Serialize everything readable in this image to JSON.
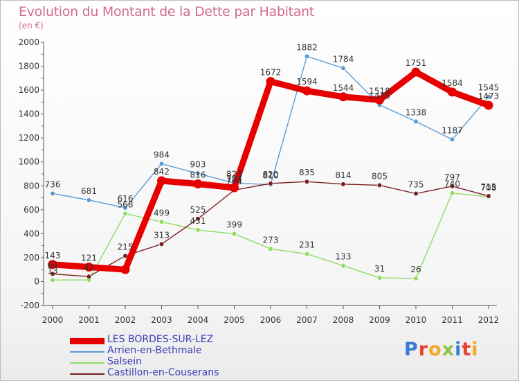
{
  "header": {
    "title": "Evolution du Montant de la Dette par Habitant",
    "subtitle": "(en €)"
  },
  "logo": {
    "text": "Proxiti",
    "colors": [
      "#3a7bd5",
      "#e8402f",
      "#f5a623",
      "#8bc34a",
      "#3a7bd5",
      "#e8402f",
      "#f5a623"
    ]
  },
  "chart_data": {
    "type": "line",
    "x": [
      "2000",
      "2001",
      "2002",
      "2003",
      "2004",
      "2005",
      "2006",
      "2007",
      "2008",
      "2009",
      "2010",
      "2011",
      "2012"
    ],
    "ylim": [
      -200,
      2000
    ],
    "yticks": [
      "-200",
      "0",
      "200",
      "400",
      "600",
      "800",
      "1000",
      "1200",
      "1400",
      "1600",
      "1800",
      "2000"
    ],
    "grid": false,
    "legend_position": "bottom-left",
    "series": [
      {
        "name": "LES BORDES-SUR-LEZ",
        "color": "#e60000",
        "values": [
          143,
          121,
          100,
          842,
          816,
          784,
          1672,
          1594,
          1544,
          1518,
          1751,
          1584,
          1473
        ],
        "labels": [
          "143",
          "121",
          "",
          "842",
          "816",
          "784",
          "1672",
          "1594",
          "1544",
          "1518",
          "1751",
          "1584",
          "1473"
        ]
      },
      {
        "name": "Arrien-en-Bethmale",
        "color": "#5b9bd5",
        "values": [
          736,
          681,
          616,
          984,
          903,
          823,
          810,
          1882,
          1784,
          1476,
          1338,
          1187,
          1545
        ],
        "labels": [
          "736",
          "681",
          "616",
          "984",
          "903",
          "823",
          "810",
          "1882",
          "1784",
          "1476",
          "1338",
          "1187",
          "1545"
        ]
      },
      {
        "name": "Salsein",
        "color": "#8fdc5f",
        "values": [
          13,
          14,
          568,
          499,
          431,
          399,
          273,
          231,
          133,
          31,
          26,
          740,
          708
        ],
        "labels": [
          "13",
          "",
          "568",
          "499",
          "431",
          "399",
          "273",
          "231",
          "133",
          "31",
          "26",
          "740",
          "708"
        ]
      },
      {
        "name": "Castillon-en-Couserans",
        "color": "#7a1e1e",
        "values": [
          64,
          42,
          215,
          313,
          525,
          764,
          820,
          835,
          814,
          805,
          735,
          797,
          715
        ],
        "labels": [
          "64",
          "42",
          "215",
          "313",
          "525",
          "764",
          "820",
          "835",
          "814",
          "805",
          "735",
          "797",
          "715"
        ]
      }
    ]
  }
}
